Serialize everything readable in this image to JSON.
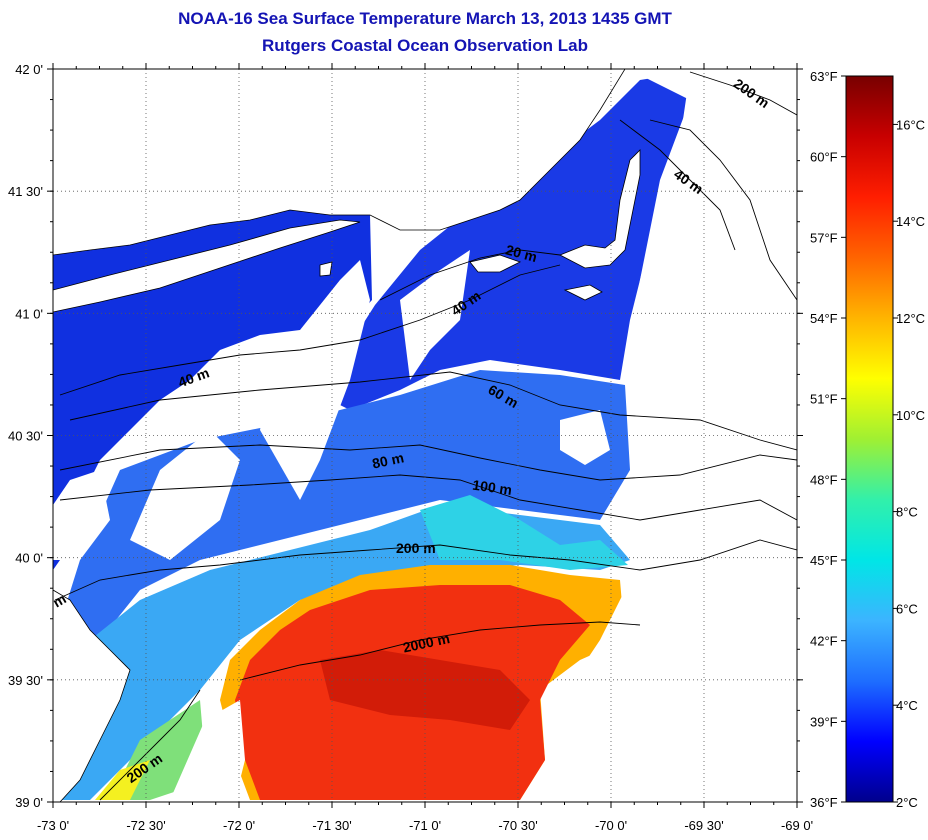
{
  "title": "NOAA-16 Sea Surface Temperature March 13, 2013 1435 GMT",
  "subtitle": "Rutgers Coastal Ocean Observation Lab",
  "map": {
    "lon_range": [
      -73.0,
      -69.0
    ],
    "lat_range": [
      39.0,
      42.0
    ],
    "lon_ticks": [
      "-73 0'",
      "-72 30'",
      "-72 0'",
      "-71 30'",
      "-71 0'",
      "-70 30'",
      "-70 0'",
      "-69 30'",
      "-69 0'"
    ],
    "lat_ticks": [
      "42 0'",
      "41 30'",
      "41 0'",
      "40 30'",
      "40 0'",
      "39 30'",
      "39 0'"
    ],
    "grid": "dotted",
    "depth_labels": [
      "200 m",
      "40 m",
      "20 m",
      "40 m",
      "40 m",
      "60 m",
      "80 m",
      "100 m",
      "200 m",
      "2000 m",
      "200 m",
      "m"
    ]
  },
  "colorbar": {
    "celsius_range": [
      2,
      17
    ],
    "fahrenheit_range": [
      36,
      63
    ],
    "celsius_labels": [
      "16°C",
      "14°C",
      "12°C",
      "10°C",
      "8°C",
      "6°C",
      "4°C",
      "2°C"
    ],
    "fahrenheit_labels": [
      "63°F",
      "60°F",
      "57°F",
      "54°F",
      "51°F",
      "48°F",
      "45°F",
      "42°F",
      "39°F",
      "36°F"
    ],
    "colors": [
      "#00008c",
      "#0000ff",
      "#1e6eff",
      "#3cb4ff",
      "#00e6e6",
      "#32f0aa",
      "#a0f032",
      "#ffff00",
      "#ffb400",
      "#ff6400",
      "#ff1e00",
      "#c80000",
      "#780000"
    ]
  }
}
